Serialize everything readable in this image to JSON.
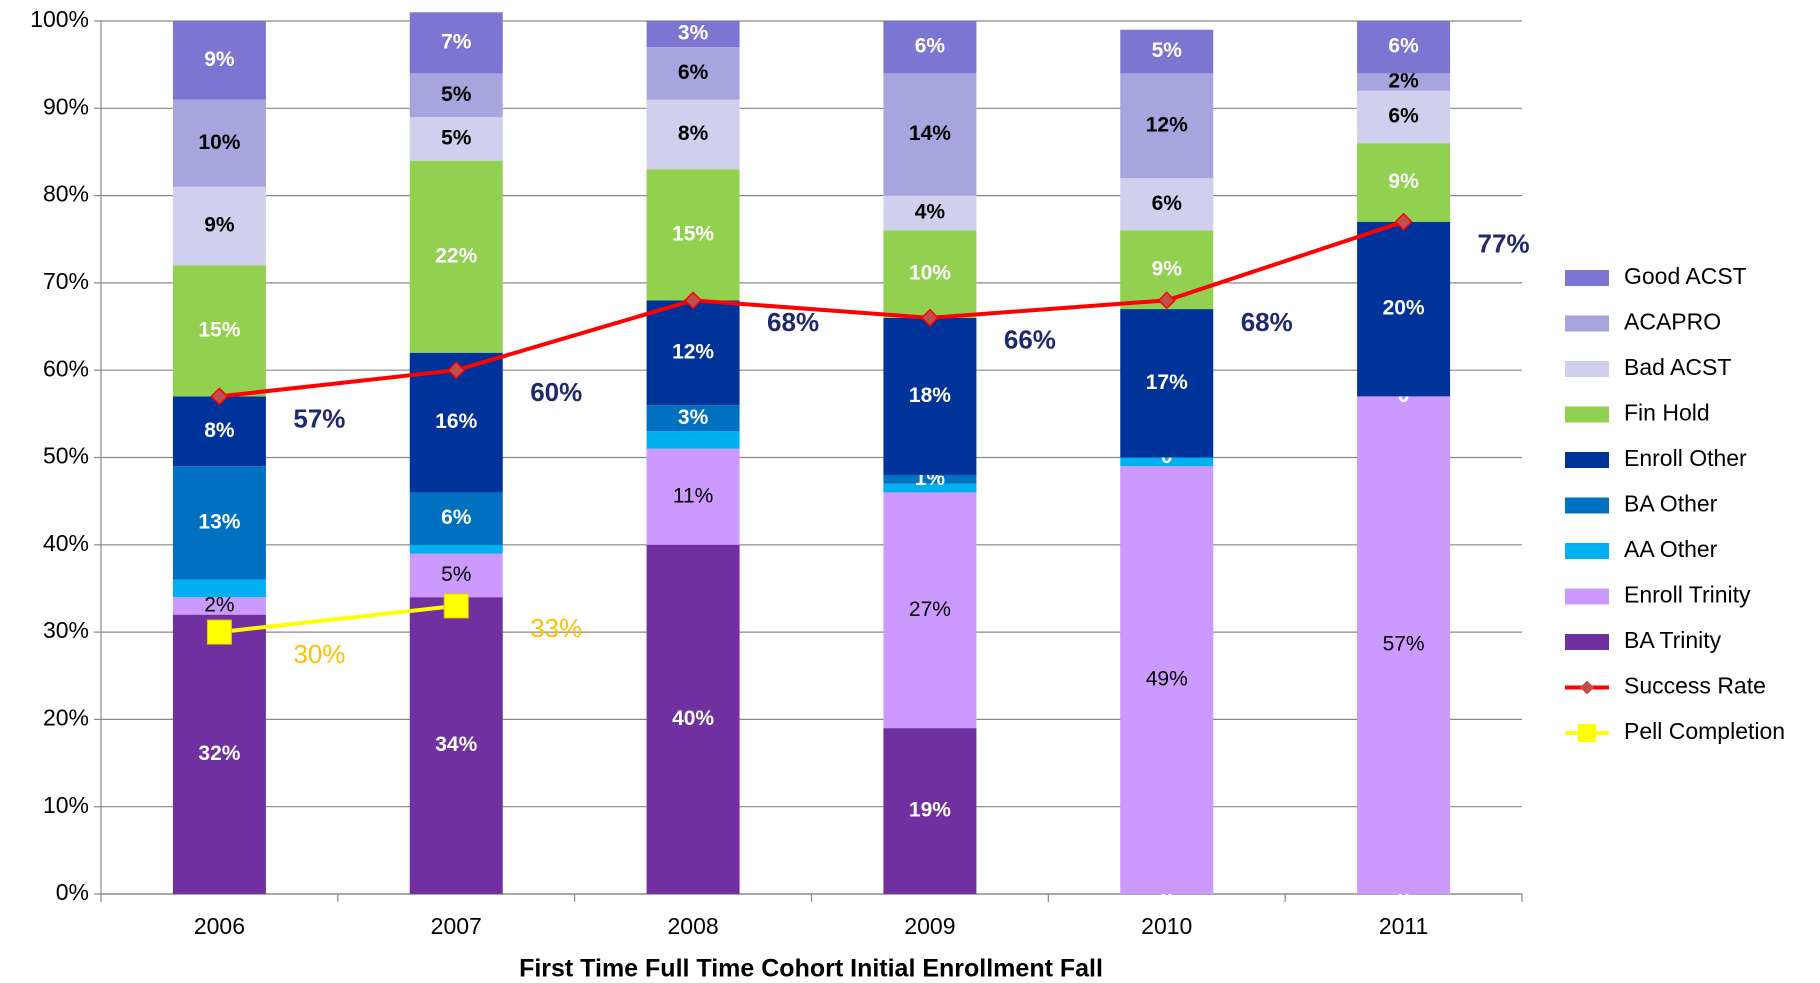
{
  "chart_data": {
    "type": "stacked_bar",
    "x_label": "First Time Full Time Cohort Initial Enrollment Fall",
    "categories": [
      "2006",
      "2007",
      "2008",
      "2009",
      "2010",
      "2011"
    ],
    "ylim": [
      0,
      100
    ],
    "yticks": [
      {
        "value": 0,
        "label": "0%"
      },
      {
        "value": 10,
        "label": "10%"
      },
      {
        "value": 20,
        "label": "20%"
      },
      {
        "value": 30,
        "label": "30%"
      },
      {
        "value": 40,
        "label": "40%"
      },
      {
        "value": 50,
        "label": "50%"
      },
      {
        "value": 60,
        "label": "60%"
      },
      {
        "value": 70,
        "label": "70%"
      },
      {
        "value": 80,
        "label": "80%"
      },
      {
        "value": 90,
        "label": "90%"
      },
      {
        "value": 100,
        "label": "100%"
      }
    ],
    "grid": true,
    "legend": "right",
    "series": [
      {
        "name": "BA Trinity",
        "color": "#7030a0",
        "values": [
          32,
          34,
          40,
          19,
          0,
          0
        ],
        "value_labels": [
          "32%",
          "34%",
          "40%",
          "19%",
          "0",
          "0"
        ]
      },
      {
        "name": "Enroll Trinity",
        "color": "#cc99ff",
        "values": [
          2,
          5,
          11,
          27,
          49,
          57
        ],
        "value_labels": [
          "2%",
          "5%",
          "11%",
          "27%",
          "49%",
          "57%"
        ]
      },
      {
        "name": "AA Other",
        "color": "#00b0f0",
        "values": [
          2,
          1,
          2,
          1,
          1,
          0
        ],
        "value_labels": [
          null,
          null,
          null,
          null,
          null,
          null
        ]
      },
      {
        "name": "BA Other",
        "color": "#0070c0",
        "values": [
          13,
          6,
          3,
          1,
          0,
          0
        ],
        "value_labels": [
          "13%",
          "6%",
          "3%",
          "1%",
          "0",
          "0"
        ]
      },
      {
        "name": "Enroll Other",
        "color": "#003399",
        "values": [
          8,
          16,
          12,
          18,
          17,
          20
        ],
        "value_labels": [
          "8%",
          "16%",
          "12%",
          "18%",
          "17%",
          "20%"
        ]
      },
      {
        "name": "Fin Hold",
        "color": "#92d050",
        "values": [
          15,
          22,
          15,
          10,
          9,
          9
        ],
        "value_labels": [
          "15%",
          "22%",
          "15%",
          "10%",
          "9%",
          "9%"
        ]
      },
      {
        "name": "Bad ACST",
        "color": "#d0d0ee",
        "values": [
          9,
          5,
          8,
          4,
          6,
          6
        ],
        "value_labels": [
          "9%",
          "5%",
          "8%",
          "4%",
          "6%",
          "6%"
        ]
      },
      {
        "name": "ACAPRO",
        "color": "#a6a6de",
        "values": [
          10,
          5,
          6,
          14,
          12,
          2
        ],
        "value_labels": [
          "10%",
          "5%",
          "6%",
          "14%",
          "12%",
          "2%"
        ]
      },
      {
        "name": "Good ACST",
        "color": "#7b76d2",
        "values": [
          9,
          7,
          3,
          6,
          5,
          6
        ],
        "value_labels": [
          "9%",
          "7%",
          "3%",
          "6%",
          "5%",
          "6%"
        ]
      }
    ],
    "lines": [
      {
        "name": "Success Rate",
        "color": "#ff0000",
        "marker": "diamond",
        "label_color": "#1f2a6e",
        "values": [
          57,
          60,
          68,
          66,
          68,
          77
        ],
        "value_labels": [
          "57%",
          "60%",
          "68%",
          "66%",
          "68%",
          "77%"
        ]
      },
      {
        "name": "Pell Completion",
        "color": "#ffff00",
        "marker": "square",
        "label_color": "#ffc000",
        "values": [
          30,
          33,
          null,
          null,
          null,
          null
        ],
        "value_labels": [
          "30%",
          "33%",
          null,
          null,
          null,
          null
        ]
      }
    ]
  }
}
